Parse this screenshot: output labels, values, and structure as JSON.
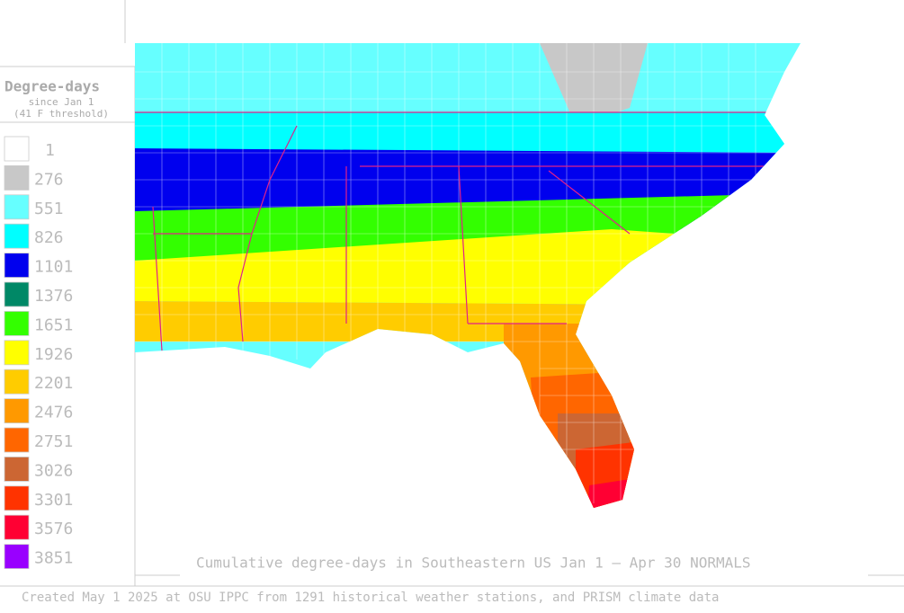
{
  "legend": {
    "title": "Degree-days",
    "subtitle": "since Jan 1",
    "threshold": "(41 F threshold)",
    "items": [
      {
        "label": 1,
        "color": "#ffffff"
      },
      {
        "label": 276,
        "color": "#c8c8c8"
      },
      {
        "label": 551,
        "color": "#66ffff"
      },
      {
        "label": 826,
        "color": "#00ffff"
      },
      {
        "label": 1101,
        "color": "#0000ee"
      },
      {
        "label": 1376,
        "color": "#008866"
      },
      {
        "label": 1651,
        "color": "#33ff00"
      },
      {
        "label": 1926,
        "color": "#ffff00"
      },
      {
        "label": 2201,
        "color": "#ffcc00"
      },
      {
        "label": 2476,
        "color": "#ff9900"
      },
      {
        "label": 2751,
        "color": "#ff6600"
      },
      {
        "label": 3026,
        "color": "#cc6633"
      },
      {
        "label": 3301,
        "color": "#ff3300"
      },
      {
        "label": 3576,
        "color": "#ff0033"
      },
      {
        "label": 3851,
        "color": "#9900ff"
      }
    ]
  },
  "caption": "Cumulative degree-days in Southeastern US Jan 1 – Apr 30 NORMALS",
  "footer": "Created May 1 2025 at OSU IPPC from 1291 historical weather stations, and PRISM climate data"
}
